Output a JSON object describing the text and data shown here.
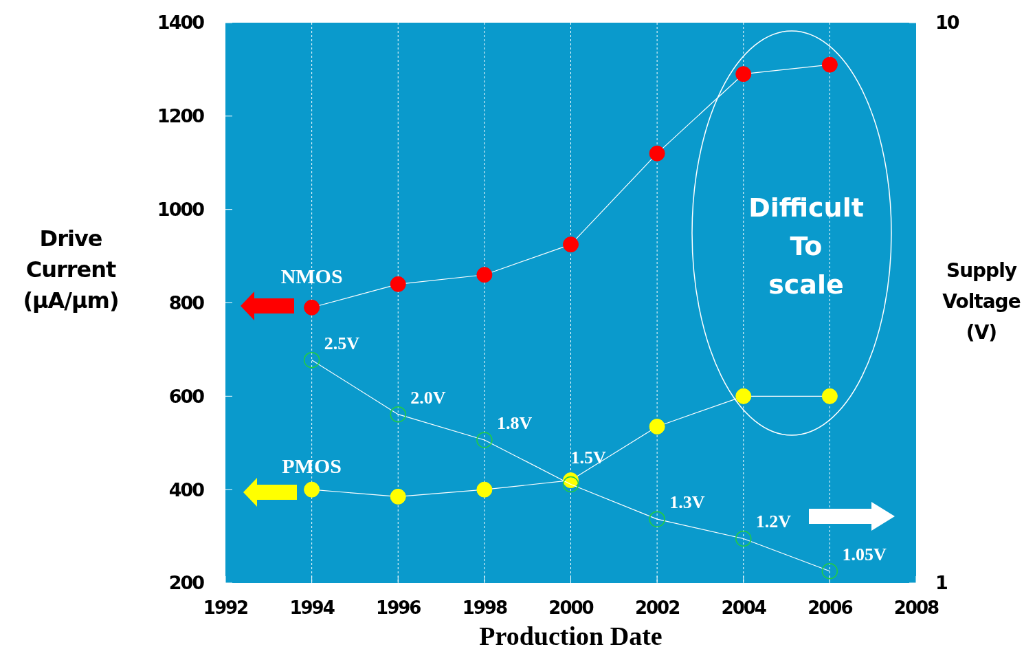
{
  "chart_data": {
    "type": "line",
    "xlabel": "Production Date",
    "ylabel": "Drive Current (µA/µm)",
    "y2label": "Supply Voltage (V)",
    "x": [
      1994,
      1996,
      1998,
      2000,
      2002,
      2004,
      2006
    ],
    "xlim": [
      1992,
      2008
    ],
    "xticks": [
      1992,
      1994,
      1996,
      1998,
      2000,
      2002,
      2004,
      2006,
      2008
    ],
    "ylim": [
      200,
      1400
    ],
    "yticks": [
      200,
      400,
      600,
      800,
      1000,
      1200,
      1400
    ],
    "y2lim": [
      1,
      10
    ],
    "y2ticks": [
      1,
      10
    ],
    "log": "y2",
    "grid": "x",
    "marker": "circle",
    "series": [
      {
        "name": "NMOS",
        "color": "#ff0000",
        "values": [
          790,
          840,
          860,
          925,
          1120,
          1290,
          1310
        ]
      },
      {
        "name": "PMOS",
        "color": "#ffff00",
        "values": [
          400,
          385,
          400,
          420,
          535,
          600,
          600
        ]
      },
      {
        "color": "#22cc44",
        "axis": "y2",
        "values": [
          2.5,
          2.0,
          1.8,
          1.5,
          1.3,
          1.2,
          1.05
        ],
        "value_labels": [
          "2.5V",
          "2.0V",
          "1.8V",
          "1.5V",
          "1.3V",
          "1.2V",
          "1.05V"
        ]
      }
    ],
    "annotations": [
      "Difficult To scale"
    ]
  }
}
